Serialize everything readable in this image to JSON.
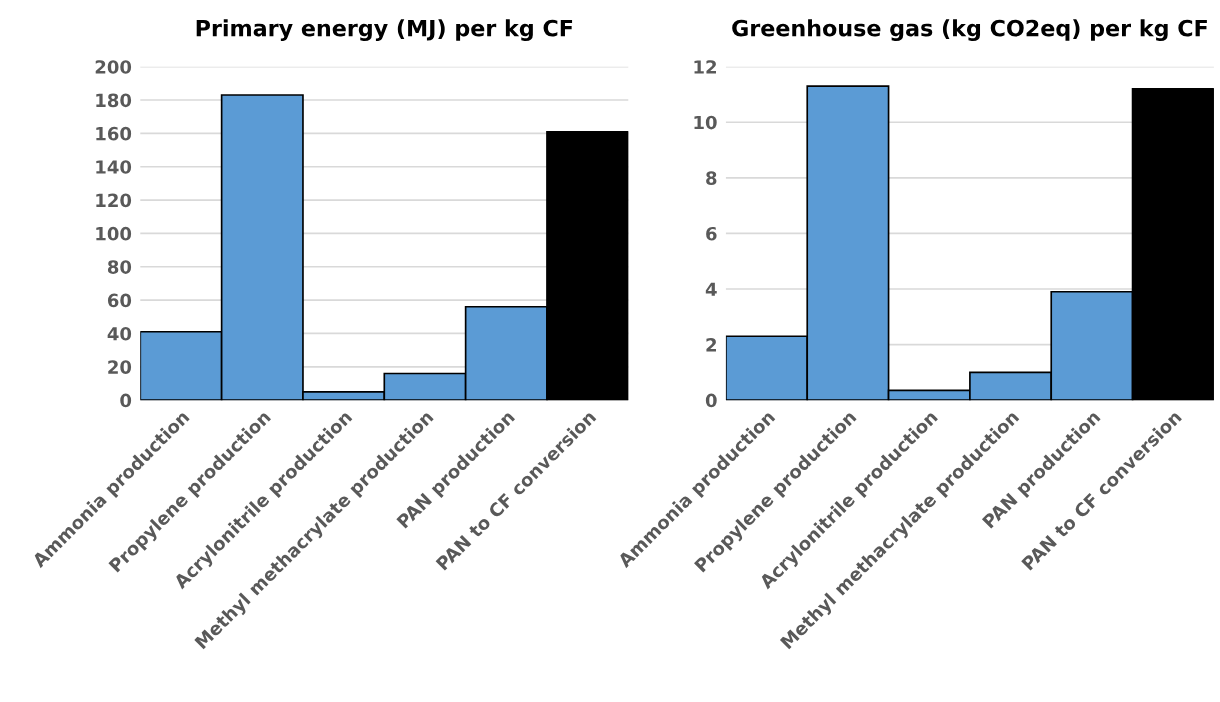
{
  "chart_data": [
    {
      "type": "bar",
      "title": "Primary energy (MJ) per kg CF",
      "categories": [
        "Ammonia production",
        "Propylene production",
        "Acrylonitrile production",
        "Methyl methacrylate production",
        "PAN production",
        "PAN to CF conversion"
      ],
      "values": [
        41,
        183,
        5,
        16,
        56,
        161
      ],
      "colors": [
        "#5b9bd5",
        "#5b9bd5",
        "#5b9bd5",
        "#5b9bd5",
        "#5b9bd5",
        "#000000"
      ],
      "ylim": [
        0,
        200
      ],
      "yticks": [
        0,
        20,
        40,
        60,
        80,
        100,
        120,
        140,
        160,
        180,
        200
      ],
      "grid": "y"
    },
    {
      "type": "bar",
      "title": "Greenhouse gas (kg CO2eq) per kg CF",
      "categories": [
        "Ammonia production",
        "Propylene production",
        "Acrylonitrile production",
        "Methyl methacrylate production",
        "PAN production",
        "PAN to CF conversion"
      ],
      "values": [
        2.3,
        11.3,
        0.35,
        1.0,
        3.9,
        11.2
      ],
      "colors": [
        "#5b9bd5",
        "#5b9bd5",
        "#5b9bd5",
        "#5b9bd5",
        "#5b9bd5",
        "#000000"
      ],
      "ylim": [
        0,
        12
      ],
      "yticks": [
        0,
        2,
        4,
        6,
        8,
        10,
        12
      ],
      "grid": "y"
    }
  ]
}
